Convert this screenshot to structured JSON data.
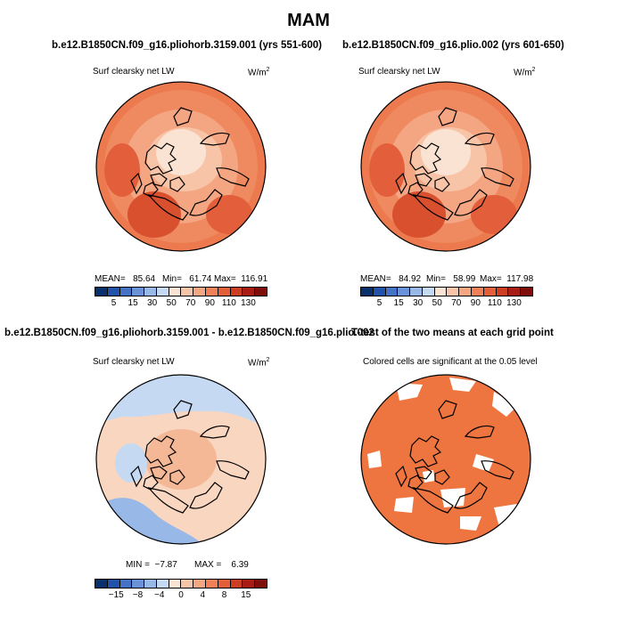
{
  "main_title": "MAM",
  "chart_data": [
    {
      "type": "heatmap",
      "title": "b.e12.B1850CN.f09_g16.pliohorb.3159.001 (yrs 551-600)",
      "field_label": "Surf clearsky net LW",
      "units": "W/m",
      "units_sup": "2",
      "projection": "polar stereographic, North Pole",
      "stats": {
        "mean": 85.64,
        "min": 61.74,
        "max": 116.91
      },
      "stats_text": {
        "mean": "MEAN=   85.64",
        "min": "Min=   61.74",
        "max": "Max=  116.91"
      },
      "colorbar": {
        "colors": [
          "#08306b",
          "#2151a8",
          "#4472c4",
          "#6a92d8",
          "#98b8e8",
          "#c6d9f2",
          "#fbe3d3",
          "#f8c4a7",
          "#f4a582",
          "#ef8058",
          "#e35f3c",
          "#cc3d24",
          "#a81c16",
          "#7f0d0b"
        ],
        "tick_labels": [
          "5",
          "15",
          "30",
          "50",
          "70",
          "90",
          "110",
          "130"
        ]
      }
    },
    {
      "type": "heatmap",
      "title": "b.e12.B1850CN.f09_g16.plio.002 (yrs 601-650)",
      "field_label": "Surf clearsky net LW",
      "units": "W/m",
      "units_sup": "2",
      "projection": "polar stereographic, North Pole",
      "stats": {
        "mean": 84.92,
        "min": 58.99,
        "max": 117.98
      },
      "stats_text": {
        "mean": "MEAN=   84.92",
        "min": "Min=   58.99",
        "max": "Max=  117.98"
      },
      "colorbar": {
        "colors": [
          "#08306b",
          "#2151a8",
          "#4472c4",
          "#6a92d8",
          "#98b8e8",
          "#c6d9f2",
          "#fbe3d3",
          "#f8c4a7",
          "#f4a582",
          "#ef8058",
          "#e35f3c",
          "#cc3d24",
          "#a81c16",
          "#7f0d0b"
        ],
        "tick_labels": [
          "5",
          "15",
          "30",
          "50",
          "70",
          "90",
          "110",
          "130"
        ]
      }
    },
    {
      "type": "heatmap",
      "title": "b.e12.B1850CN.f09_g16.pliohorb.3159.001 - b.e12.B1850CN.f09_g16.plio.002",
      "field_label": "Surf clearsky net LW",
      "units": "W/m",
      "units_sup": "2",
      "projection": "polar stereographic, North Pole",
      "stats": {
        "min": -7.87,
        "max": 6.39
      },
      "stats_text": {
        "min": "MIN =  −7.87",
        "max": "MAX =    6.39"
      },
      "colorbar": {
        "colors": [
          "#08306b",
          "#2151a8",
          "#4472c4",
          "#6a92d8",
          "#98b8e8",
          "#c6d9f2",
          "#fbe3d3",
          "#f8c4a7",
          "#f4a582",
          "#ef8058",
          "#e35f3c",
          "#cc3d24",
          "#a81c16",
          "#7f0d0b"
        ],
        "tick_labels": [
          "−15",
          "−8",
          "−4",
          "0",
          "4",
          "8",
          "15"
        ]
      }
    },
    {
      "type": "heatmap",
      "title": "T-test of the two means at each grid point",
      "field_label": "Colored cells are significant at the 0.05 level",
      "projection": "polar stereographic, North Pole",
      "significance_color": "#ef7540"
    }
  ]
}
